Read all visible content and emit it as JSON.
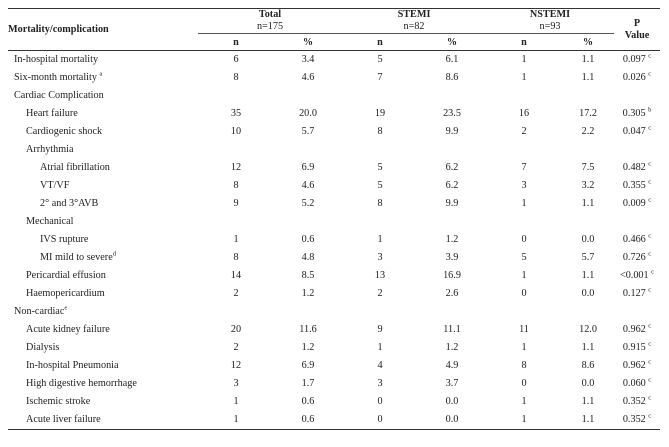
{
  "header": {
    "mortality_col": "Mortality/complication",
    "groups": [
      {
        "name": "Total",
        "n_label": "n=175"
      },
      {
        "name": "STEMI",
        "n_label": "n=82"
      },
      {
        "name": "NSTEMI",
        "n_label": "n=93"
      }
    ],
    "p_label": "P",
    "value_label": "Value",
    "sub_n": "n",
    "sub_pct": "%"
  },
  "rows": [
    {
      "label": "In-hospital mortality",
      "sup": "",
      "indent": 0,
      "cells": [
        "6",
        "3.4",
        "5",
        "6.1",
        "1",
        "1.1"
      ],
      "p": "0.097",
      "psup": "c"
    },
    {
      "label": "Six-month mortality ",
      "sup": "a",
      "indent": 0,
      "cells": [
        "8",
        "4.6",
        "7",
        "8.6",
        "1",
        "1.1"
      ],
      "p": "0.026",
      "psup": "c"
    },
    {
      "label": "Cardiac Complication",
      "sup": "",
      "indent": 0,
      "cells": [
        "",
        "",
        "",
        "",
        "",
        ""
      ],
      "p": "",
      "psup": ""
    },
    {
      "label": "Heart failure",
      "sup": "",
      "indent": 1,
      "cells": [
        "35",
        "20.0",
        "19",
        "23.5",
        "16",
        "17.2"
      ],
      "p": "0.305",
      "psup": "b"
    },
    {
      "label": "Cardiogenic shock",
      "sup": "",
      "indent": 1,
      "cells": [
        "10",
        "5.7",
        "8",
        "9.9",
        "2",
        "2.2"
      ],
      "p": "0.047",
      "psup": "c"
    },
    {
      "label": "Arrhythmia",
      "sup": "",
      "indent": 1,
      "cells": [
        "",
        "",
        "",
        "",
        "",
        ""
      ],
      "p": "",
      "psup": ""
    },
    {
      "label": "Atrial fibrillation",
      "sup": "",
      "indent": 2,
      "cells": [
        "12",
        "6.9",
        "5",
        "6.2",
        "7",
        "7.5"
      ],
      "p": "0.482",
      "psup": "c"
    },
    {
      "label": "VT/VF",
      "sup": "",
      "indent": 2,
      "cells": [
        "8",
        "4.6",
        "5",
        "6.2",
        "3",
        "3.2"
      ],
      "p": "0.355",
      "psup": "c"
    },
    {
      "label": "2° and 3°AVB",
      "sup": "",
      "indent": 2,
      "cells": [
        "9",
        "5.2",
        "8",
        "9.9",
        "1",
        "1.1"
      ],
      "p": "0.009",
      "psup": "c"
    },
    {
      "label": "Mechanical",
      "sup": "",
      "indent": 1,
      "cells": [
        "",
        "",
        "",
        "",
        "",
        ""
      ],
      "p": "",
      "psup": ""
    },
    {
      "label": "IVS rupture",
      "sup": "",
      "indent": 2,
      "cells": [
        "1",
        "0.6",
        "1",
        "1.2",
        "0",
        "0.0"
      ],
      "p": "0.466",
      "psup": "c"
    },
    {
      "label": "MI mild to severe",
      "sup": "d",
      "indent": 2,
      "cells": [
        "8",
        "4.8",
        "3",
        "3.9",
        "5",
        "5.7"
      ],
      "p": "0.726",
      "psup": "c"
    },
    {
      "label": "Pericardial effusion",
      "sup": "",
      "indent": 1,
      "cells": [
        "14",
        "8.5",
        "13",
        "16.9",
        "1",
        "1.1"
      ],
      "p": "<0.001",
      "psup": "c"
    },
    {
      "label": "Haemopericardium",
      "sup": "",
      "indent": 1,
      "cells": [
        "2",
        "1.2",
        "2",
        "2.6",
        "0",
        "0.0"
      ],
      "p": "0.127",
      "psup": "c"
    },
    {
      "label": "Non-cardiac",
      "sup": "e",
      "indent": 0,
      "cells": [
        "",
        "",
        "",
        "",
        "",
        ""
      ],
      "p": "",
      "psup": ""
    },
    {
      "label": "Acute kidney failure",
      "sup": "",
      "indent": 1,
      "cells": [
        "20",
        "11.6",
        "9",
        "11.1",
        "11",
        "12.0"
      ],
      "p": "0.962",
      "psup": "c"
    },
    {
      "label": "Dialysis",
      "sup": "",
      "indent": 1,
      "cells": [
        "2",
        "1.2",
        "1",
        "1.2",
        "1",
        "1.1"
      ],
      "p": "0.915",
      "psup": "c"
    },
    {
      "label": "In-hospital Pneumonia",
      "sup": "",
      "indent": 1,
      "cells": [
        "12",
        "6.9",
        "4",
        "4.9",
        "8",
        "8.6"
      ],
      "p": "0.962",
      "psup": "c"
    },
    {
      "label": "High digestive hemorrhage",
      "sup": "",
      "indent": 1,
      "cells": [
        "3",
        "1.7",
        "3",
        "3.7",
        "0",
        "0.0"
      ],
      "p": "0.060",
      "psup": "c"
    },
    {
      "label": "Ischemic stroke",
      "sup": "",
      "indent": 1,
      "cells": [
        "1",
        "0.6",
        "0",
        "0.0",
        "1",
        "1.1"
      ],
      "p": "0.352",
      "psup": "c"
    },
    {
      "label": "Acute liver failure",
      "sup": "",
      "indent": 1,
      "cells": [
        "1",
        "0.6",
        "0",
        "0.0",
        "1",
        "1.1"
      ],
      "p": "0.352",
      "psup": "c"
    }
  ]
}
